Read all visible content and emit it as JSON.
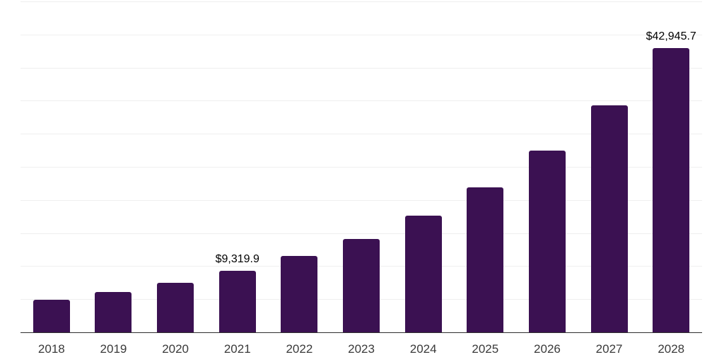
{
  "chart_data": {
    "type": "bar",
    "title": "",
    "xlabel": "",
    "ylabel": "",
    "categories": [
      "2018",
      "2019",
      "2020",
      "2021",
      "2022",
      "2023",
      "2024",
      "2025",
      "2026",
      "2027",
      "2028"
    ],
    "values": [
      4930,
      6100,
      7500,
      9319.9,
      11520,
      14130,
      17670,
      21950,
      27410,
      34290,
      42945.7
    ],
    "data_labels": {
      "2021": "$9,319.9",
      "2028": "$42,945.7"
    },
    "ylim": [
      0,
      50000
    ],
    "grid_interval": 5000,
    "grid_on": true,
    "legend": "none",
    "colors": {
      "bar": "#3b1152",
      "gridline": "#efefef",
      "axis_line": "#2f2f2f",
      "tick_label": "#3a3a3a",
      "data_label": "#000000",
      "background": "#ffffff"
    }
  }
}
